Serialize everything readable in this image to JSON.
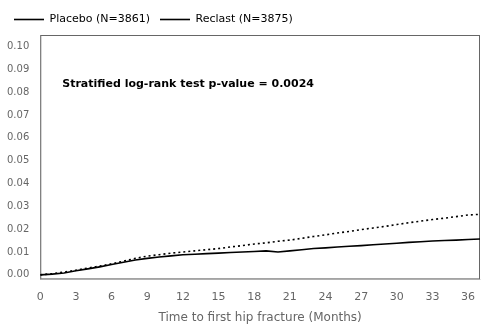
{
  "chart_data": {
    "type": "line",
    "xlabel": "Time to first hip fracture (Months)",
    "annotation": "Stratified log-rank test p-value = 0.0024",
    "x": [
      0,
      1,
      2,
      3,
      4,
      5,
      6,
      7,
      8,
      9,
      10,
      11,
      12,
      13,
      14,
      15,
      16,
      17,
      18,
      19,
      20,
      21,
      22,
      23,
      24,
      25,
      26,
      27,
      28,
      29,
      30,
      31,
      32,
      33,
      34,
      35,
      36,
      37
    ],
    "series": [
      {
        "name": "Placebo (N=3861)",
        "color": "#000000",
        "line_style": "dotted",
        "values": [
          0.0,
          0.0005,
          0.0012,
          0.002,
          0.003,
          0.0038,
          0.0048,
          0.006,
          0.0072,
          0.0082,
          0.0088,
          0.0095,
          0.01,
          0.0105,
          0.011,
          0.0115,
          0.0122,
          0.0128,
          0.0135,
          0.014,
          0.0147,
          0.0152,
          0.016,
          0.0168,
          0.0175,
          0.0183,
          0.019,
          0.0198,
          0.0205,
          0.0212,
          0.022,
          0.0228,
          0.0235,
          0.0242,
          0.0248,
          0.0255,
          0.0262,
          0.0265
        ]
      },
      {
        "name": "Reclast (N=3875)",
        "color": "#000000",
        "line_style": "solid",
        "values": [
          0.0,
          0.0003,
          0.0008,
          0.0018,
          0.0026,
          0.0035,
          0.0045,
          0.0055,
          0.0065,
          0.0072,
          0.0078,
          0.0083,
          0.0088,
          0.009,
          0.0093,
          0.0095,
          0.0098,
          0.01,
          0.0102,
          0.0105,
          0.01,
          0.0105,
          0.011,
          0.0115,
          0.0118,
          0.0122,
          0.0125,
          0.0128,
          0.0132,
          0.0135,
          0.0138,
          0.0142,
          0.0145,
          0.0148,
          0.015,
          0.0152,
          0.0155,
          0.0157
        ]
      }
    ],
    "xlim": [
      0,
      37
    ],
    "ylim": [
      -0.002,
      0.105
    ],
    "xticks": [
      0,
      3,
      6,
      9,
      12,
      15,
      18,
      21,
      24,
      27,
      30,
      33,
      36
    ],
    "yticks": [
      {
        "value": 0.0,
        "label": "0.00"
      },
      0.01,
      0.02,
      0.03,
      0.04,
      0.05,
      0.06,
      0.07,
      0.08,
      0.09,
      {
        "value": 0.1,
        "label": "0.10"
      }
    ],
    "grid": false,
    "legend": "upper left"
  }
}
